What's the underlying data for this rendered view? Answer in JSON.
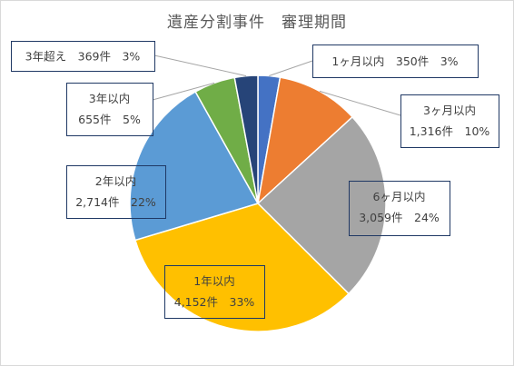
{
  "chart_data": {
    "type": "pie",
    "title": "遺産分割事件　審理期間",
    "slices": [
      {
        "label": "1ヶ月以内",
        "value": 350,
        "value_text": "350件",
        "percent": "3%",
        "color": "#4472C4"
      },
      {
        "label": "3ヶ月以内",
        "value": 1316,
        "value_text": "1,316件",
        "percent": "10%",
        "color": "#ED7D31"
      },
      {
        "label": "6ヶ月以内",
        "value": 3059,
        "value_text": "3,059件",
        "percent": "24%",
        "color": "#A5A5A5"
      },
      {
        "label": "1年以内",
        "value": 4152,
        "value_text": "4,152件",
        "percent": "33%",
        "color": "#FFC000"
      },
      {
        "label": "2年以内",
        "value": 2714,
        "value_text": "2,714件",
        "percent": "22%",
        "color": "#5B9BD5"
      },
      {
        "label": "3年以内",
        "value": 655,
        "value_text": "655件",
        "percent": "5%",
        "color": "#70AD47"
      },
      {
        "label": "3年超え",
        "value": 369,
        "value_text": "369件",
        "percent": "3%",
        "color": "#264478"
      }
    ],
    "legend": "none",
    "start_angle": "12 o'clock",
    "direction": "clockwise"
  }
}
